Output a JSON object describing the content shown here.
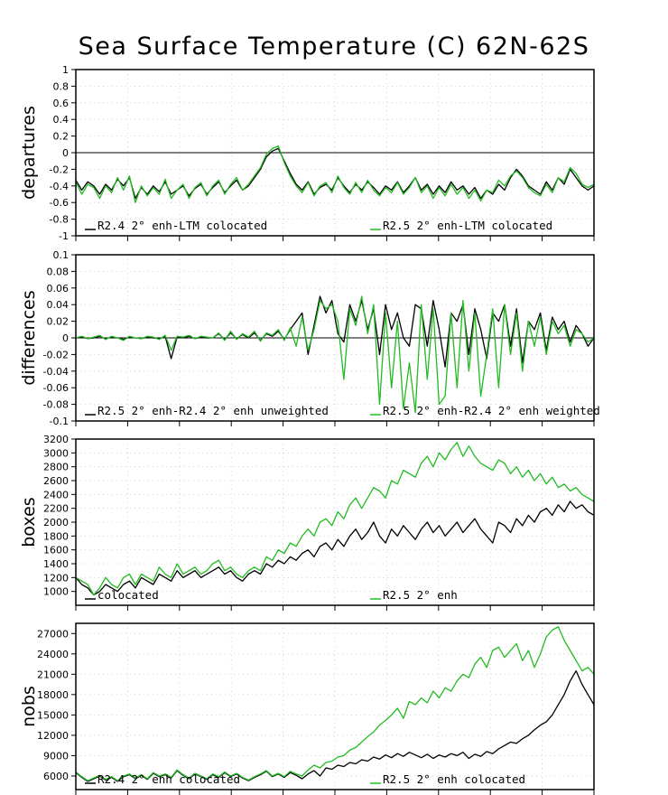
{
  "title": "Sea Surface Temperature (C) 62N-62S",
  "chart_data": [
    {
      "type": "line",
      "ylabel": "departures",
      "ylim": [
        -1,
        1
      ],
      "yticks": [
        "1",
        "0.8",
        "0.6",
        "0.4",
        "0.2",
        "0",
        "-0.2",
        "-0.4",
        "-0.6",
        "-0.8",
        "-1"
      ],
      "zero_line": true,
      "legend": [
        "R2.4 2° enh-LTM colocated",
        "R2.5 2° enh-LTM colocated"
      ],
      "series": [
        {
          "name": "R2.4 2° enh-LTM colocated",
          "color": "#000000",
          "values": [
            -0.33,
            -0.45,
            -0.35,
            -0.4,
            -0.5,
            -0.38,
            -0.45,
            -0.32,
            -0.4,
            -0.3,
            -0.55,
            -0.42,
            -0.5,
            -0.4,
            -0.47,
            -0.35,
            -0.5,
            -0.45,
            -0.4,
            -0.52,
            -0.43,
            -0.38,
            -0.5,
            -0.42,
            -0.35,
            -0.48,
            -0.4,
            -0.33,
            -0.45,
            -0.4,
            -0.3,
            -0.2,
            -0.05,
            0.02,
            0.05,
            -0.1,
            -0.25,
            -0.38,
            -0.45,
            -0.35,
            -0.5,
            -0.42,
            -0.38,
            -0.45,
            -0.3,
            -0.4,
            -0.48,
            -0.38,
            -0.45,
            -0.35,
            -0.42,
            -0.5,
            -0.4,
            -0.45,
            -0.35,
            -0.48,
            -0.4,
            -0.3,
            -0.45,
            -0.38,
            -0.5,
            -0.4,
            -0.48,
            -0.35,
            -0.45,
            -0.4,
            -0.5,
            -0.42,
            -0.55,
            -0.45,
            -0.5,
            -0.38,
            -0.45,
            -0.3,
            -0.2,
            -0.28,
            -0.4,
            -0.45,
            -0.5,
            -0.35,
            -0.45,
            -0.3,
            -0.38,
            -0.2,
            -0.3,
            -0.4,
            -0.45,
            -0.4
          ]
        },
        {
          "name": "R2.5 2° enh-LTM colocated",
          "color": "#22bb22",
          "values": [
            -0.35,
            -0.5,
            -0.38,
            -0.42,
            -0.55,
            -0.4,
            -0.48,
            -0.3,
            -0.45,
            -0.28,
            -0.6,
            -0.4,
            -0.52,
            -0.42,
            -0.5,
            -0.32,
            -0.55,
            -0.45,
            -0.38,
            -0.55,
            -0.42,
            -0.36,
            -0.52,
            -0.4,
            -0.33,
            -0.5,
            -0.38,
            -0.3,
            -0.45,
            -0.38,
            -0.28,
            -0.18,
            -0.02,
            0.05,
            0.08,
            -0.12,
            -0.28,
            -0.4,
            -0.48,
            -0.36,
            -0.52,
            -0.4,
            -0.36,
            -0.48,
            -0.28,
            -0.42,
            -0.5,
            -0.36,
            -0.48,
            -0.33,
            -0.45,
            -0.52,
            -0.42,
            -0.48,
            -0.36,
            -0.5,
            -0.42,
            -0.3,
            -0.48,
            -0.4,
            -0.55,
            -0.42,
            -0.52,
            -0.38,
            -0.5,
            -0.42,
            -0.55,
            -0.45,
            -0.58,
            -0.45,
            -0.48,
            -0.33,
            -0.4,
            -0.28,
            -0.22,
            -0.3,
            -0.42,
            -0.48,
            -0.52,
            -0.38,
            -0.48,
            -0.3,
            -0.35,
            -0.18,
            -0.25,
            -0.38,
            -0.42,
            -0.38
          ]
        }
      ]
    },
    {
      "type": "line",
      "ylabel": "differences",
      "ylim": [
        -0.1,
        0.1
      ],
      "yticks": [
        "0.1",
        "0.08",
        "0.06",
        "0.04",
        "0.02",
        "0",
        "-0.02",
        "-0.04",
        "-0.06",
        "-0.08",
        "-0.1"
      ],
      "zero_line": true,
      "legend": [
        "R2.5 2° enh-R2.4 2° enh unweighted",
        "R2.5 2° enh-R2.4 2° enh weighted"
      ],
      "series": [
        {
          "name": "R2.5 2° enh-R2.4 2° enh unweighted",
          "color": "#000000",
          "values": [
            0,
            0.001,
            -0.001,
            0,
            0.002,
            -0.001,
            0.001,
            0,
            -0.002,
            0.001,
            0,
            -0.001,
            0.001,
            0,
            -0.001,
            0.002,
            -0.025,
            0.001,
            0,
            0.002,
            -0.001,
            0.001,
            0,
            0,
            0.005,
            -0.002,
            0.006,
            -0.001,
            0.004,
            0,
            0.006,
            -0.003,
            0.005,
            0.002,
            0.008,
            -0.002,
            0.01,
            0.02,
            0.03,
            -0.02,
            0.015,
            0.05,
            0.03,
            0.045,
            0.005,
            -0.005,
            0.04,
            0.02,
            0.045,
            0.01,
            0.035,
            -0.02,
            0.04,
            0.01,
            0.03,
            0,
            -0.01,
            0.04,
            0.035,
            -0.01,
            0.045,
            0.01,
            -0.035,
            0.03,
            0.02,
            0.04,
            -0.02,
            0.035,
            0.01,
            -0.025,
            0.03,
            0.02,
            0.04,
            -0.01,
            0.035,
            -0.03,
            0.02,
            0.01,
            0.03,
            -0.015,
            0.025,
            0.01,
            0.02,
            -0.005,
            0.015,
            0.005,
            -0.01,
            0
          ]
        },
        {
          "name": "R2.5 2° enh-R2.4 2° enh weighted",
          "color": "#22bb22",
          "values": [
            0,
            0.002,
            -0.001,
            0.001,
            0.003,
            -0.002,
            0.002,
            0,
            -0.003,
            0.002,
            0,
            -0.001,
            0.002,
            0.001,
            -0.002,
            0.003,
            -0.015,
            0.002,
            0.001,
            0.003,
            -0.001,
            0.002,
            0.001,
            0,
            0.006,
            -0.003,
            0.008,
            -0.002,
            0.005,
            0.001,
            0.008,
            -0.004,
            0.006,
            0.003,
            0.01,
            -0.003,
            0.012,
            -0.01,
            0.025,
            -0.015,
            0.01,
            0.045,
            0.035,
            0.04,
            0.02,
            -0.05,
            0.035,
            0.015,
            0.05,
            0.005,
            0.04,
            -0.08,
            0.03,
            -0.06,
            0.02,
            -0.085,
            -0.03,
            -0.09,
            0.04,
            -0.05,
            0.035,
            -0.08,
            -0.07,
            0.03,
            -0.06,
            0.045,
            -0.04,
            0.03,
            -0.07,
            -0.02,
            0.035,
            -0.06,
            0.04,
            -0.02,
            0.03,
            -0.04,
            0.02,
            -0.01,
            0.025,
            -0.02,
            0.02,
            0.005,
            0.015,
            -0.01,
            0.01,
            0.005,
            -0.005,
            0
          ]
        }
      ]
    },
    {
      "type": "line",
      "ylabel": "boxes",
      "ylim": [
        800,
        3200
      ],
      "yticks": [
        "3200",
        "3000",
        "2800",
        "2600",
        "2400",
        "2200",
        "2000",
        "1800",
        "1600",
        "1400",
        "1200",
        "1000"
      ],
      "zero_line": false,
      "legend": [
        "colocated",
        "R2.5 2° enh"
      ],
      "series": [
        {
          "name": "colocated",
          "color": "#000000",
          "values": [
            1200,
            1100,
            1050,
            950,
            1000,
            1100,
            1050,
            1000,
            1100,
            1150,
            1050,
            1200,
            1150,
            1100,
            1250,
            1200,
            1150,
            1300,
            1200,
            1250,
            1300,
            1200,
            1250,
            1300,
            1350,
            1250,
            1300,
            1200,
            1150,
            1250,
            1300,
            1250,
            1400,
            1350,
            1450,
            1400,
            1500,
            1450,
            1550,
            1600,
            1500,
            1650,
            1700,
            1600,
            1750,
            1650,
            1800,
            1900,
            1750,
            1850,
            2000,
            1800,
            1700,
            1900,
            1800,
            1950,
            1850,
            1750,
            1900,
            2000,
            1850,
            1950,
            1800,
            1900,
            2000,
            1850,
            1950,
            2050,
            1900,
            1800,
            1700,
            2000,
            1950,
            1850,
            2050,
            1950,
            2100,
            2000,
            2150,
            2200,
            2100,
            2250,
            2150,
            2300,
            2200,
            2250,
            2150,
            2100
          ]
        },
        {
          "name": "R2.5 2° enh",
          "color": "#22bb22",
          "values": [
            1200,
            1150,
            1100,
            950,
            1050,
            1200,
            1100,
            1050,
            1200,
            1250,
            1100,
            1250,
            1200,
            1150,
            1350,
            1250,
            1200,
            1400,
            1250,
            1300,
            1350,
            1250,
            1300,
            1400,
            1450,
            1300,
            1350,
            1250,
            1200,
            1300,
            1350,
            1300,
            1500,
            1450,
            1600,
            1550,
            1700,
            1650,
            1800,
            1900,
            1800,
            2000,
            2050,
            1950,
            2150,
            2050,
            2250,
            2350,
            2200,
            2350,
            2500,
            2450,
            2350,
            2600,
            2550,
            2750,
            2700,
            2650,
            2850,
            2950,
            2800,
            3000,
            2900,
            3050,
            3150,
            2950,
            3100,
            2950,
            2850,
            2800,
            2750,
            2900,
            2850,
            2700,
            2800,
            2650,
            2750,
            2600,
            2700,
            2550,
            2650,
            2500,
            2550,
            2450,
            2500,
            2400,
            2350,
            2300
          ]
        }
      ]
    },
    {
      "type": "line",
      "ylabel": "nobs",
      "ylim": [
        4000,
        28500
      ],
      "yticks": [
        "27000",
        "24000",
        "21000",
        "18000",
        "15000",
        "12000",
        "9000",
        "6000"
      ],
      "zero_line": false,
      "legend": [
        "R2.4 2° enh colocated",
        "R2.5 2° enh colocated"
      ],
      "series": [
        {
          "name": "R2.4 2° enh colocated",
          "color": "#000000",
          "values": [
            6500,
            5800,
            5200,
            5600,
            6000,
            5400,
            5800,
            5200,
            5900,
            6200,
            5600,
            6100,
            5500,
            6400,
            5900,
            6200,
            5700,
            6800,
            6100,
            5600,
            6300,
            5900,
            5500,
            6200,
            5800,
            6500,
            5900,
            6300,
            5700,
            5300,
            5800,
            6200,
            6700,
            5900,
            6300,
            5800,
            6500,
            6100,
            5600,
            6300,
            6800,
            6000,
            7200,
            7000,
            7600,
            7400,
            8000,
            7800,
            8400,
            8200,
            8800,
            8500,
            9100,
            8700,
            9300,
            8900,
            9500,
            9100,
            8700,
            9200,
            8600,
            9100,
            8800,
            9300,
            9000,
            9500,
            8600,
            9200,
            8900,
            9600,
            9300,
            10000,
            10500,
            11000,
            10800,
            11500,
            12000,
            12800,
            13500,
            14000,
            15000,
            16500,
            18000,
            20000,
            21500,
            19500,
            18000,
            16500
          ]
        },
        {
          "name": "R2.5 2° enh colocated",
          "color": "#22bb22",
          "values": [
            6600,
            5900,
            5300,
            5700,
            6100,
            5500,
            5900,
            5300,
            6000,
            6300,
            5700,
            6200,
            5600,
            6500,
            6000,
            6300,
            5800,
            6900,
            6200,
            5700,
            6400,
            6000,
            5600,
            6300,
            5900,
            6600,
            6000,
            6400,
            5800,
            5400,
            5900,
            6300,
            6800,
            6000,
            6400,
            5900,
            6700,
            6300,
            6000,
            6900,
            7600,
            7200,
            8000,
            8200,
            8800,
            9000,
            9800,
            10200,
            11000,
            11800,
            12500,
            13500,
            14200,
            15000,
            16000,
            14500,
            17000,
            16500,
            17500,
            16800,
            18500,
            17500,
            19000,
            18500,
            20000,
            21000,
            20500,
            22500,
            23500,
            22000,
            24500,
            25000,
            23500,
            24500,
            25500,
            23000,
            24500,
            22000,
            24000,
            26500,
            27500,
            28000,
            26000,
            24500,
            23000,
            21500,
            22000,
            21000
          ]
        }
      ]
    }
  ]
}
